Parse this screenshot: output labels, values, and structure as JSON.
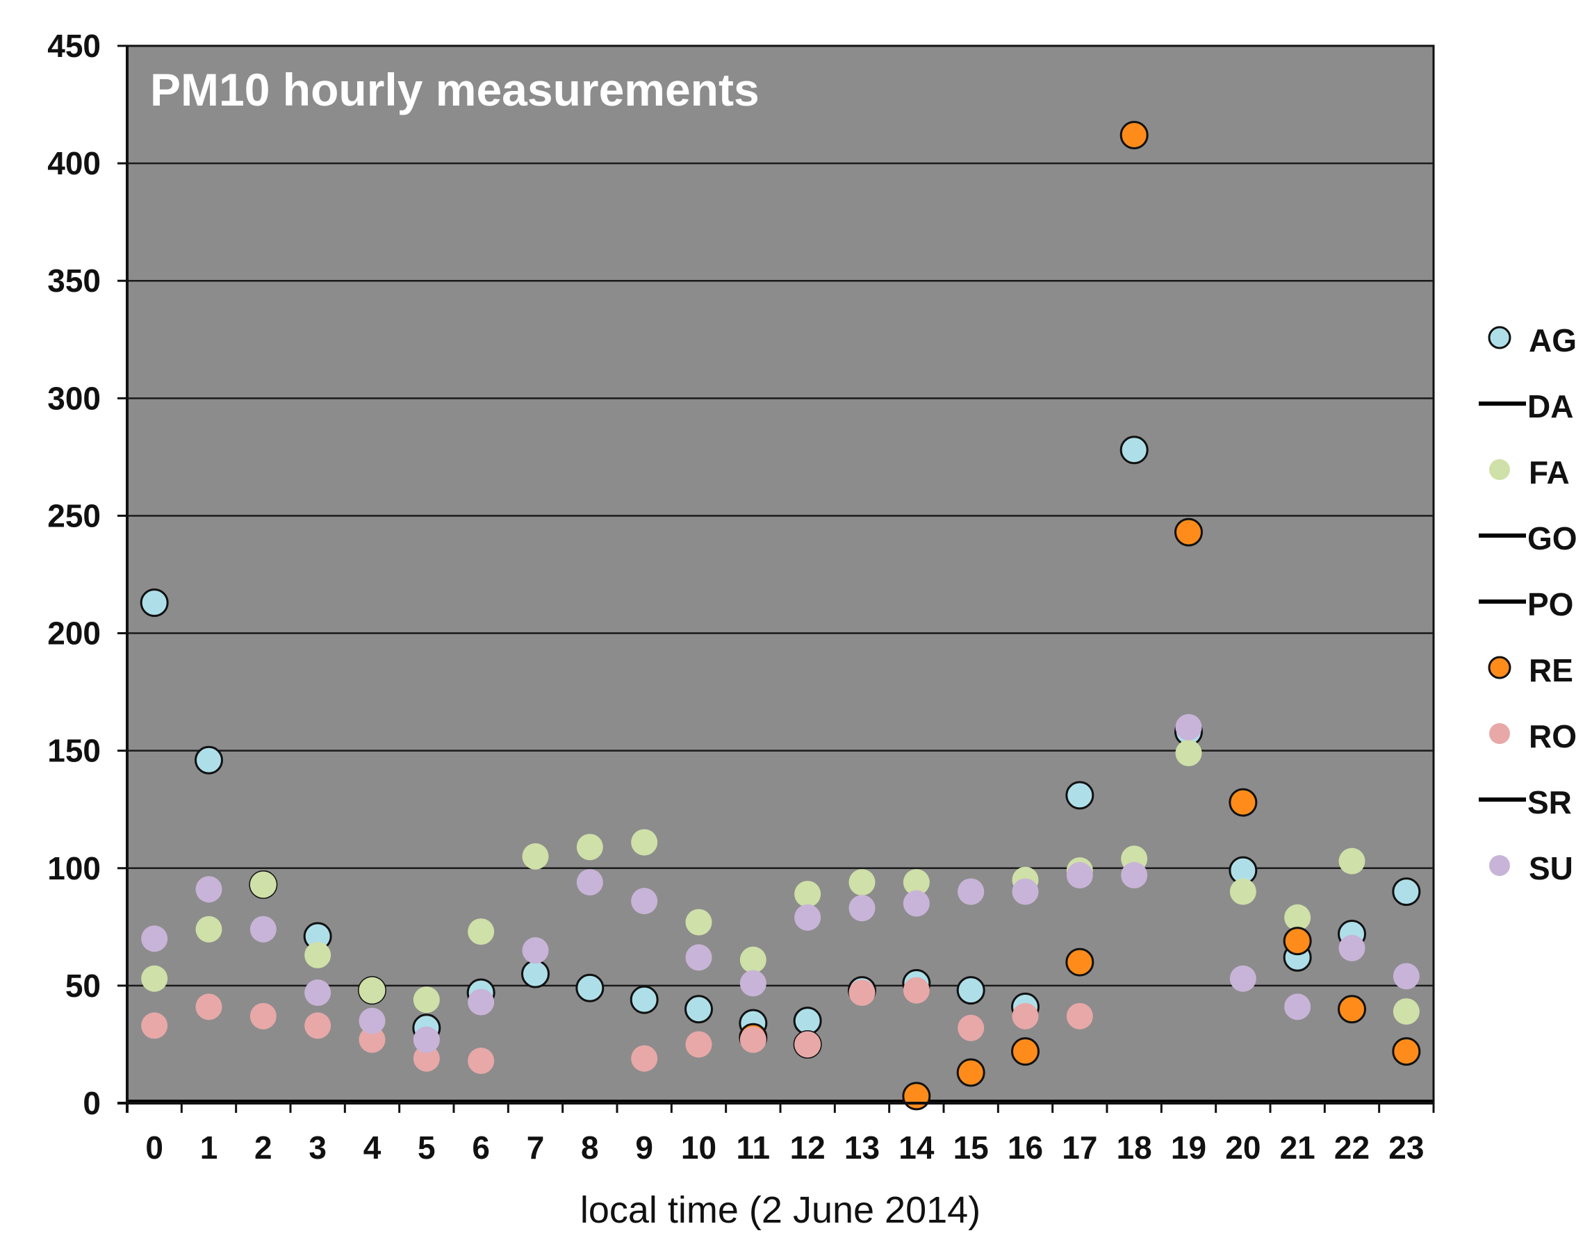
{
  "chart_data": {
    "type": "scatter",
    "title": "PM10 hourly measurements",
    "xlabel": "local time (2 June 2014)",
    "ylabel": "",
    "xlim": [
      -0.5,
      23.5
    ],
    "ylim": [
      0,
      450
    ],
    "yticks": [
      0,
      50,
      100,
      150,
      200,
      250,
      300,
      350,
      400,
      450
    ],
    "categories": [
      "0",
      "1",
      "2",
      "3",
      "4",
      "5",
      "6",
      "7",
      "8",
      "9",
      "10",
      "11",
      "12",
      "13",
      "14",
      "15",
      "16",
      "17",
      "18",
      "19",
      "20",
      "21",
      "22",
      "23"
    ],
    "grid": true,
    "background_color": "#8c8c8c",
    "legend_position": "right",
    "series": [
      {
        "name": "AG",
        "marker": "circle",
        "color": "#aedfe9",
        "outline": true,
        "values": [
          213,
          146,
          93,
          71,
          48,
          32,
          47,
          55,
          49,
          44,
          40,
          34,
          35,
          48,
          51,
          48,
          41,
          131,
          278,
          158,
          99,
          62,
          72,
          90
        ]
      },
      {
        "name": "DA",
        "marker": "line",
        "color": "#000000",
        "outline": false,
        "values": [
          0,
          0,
          0,
          0,
          0,
          0,
          0,
          0,
          0,
          0,
          0,
          0,
          0,
          0,
          0,
          0,
          0,
          0,
          0,
          0,
          0,
          0,
          0,
          0
        ]
      },
      {
        "name": "FA",
        "marker": "circle",
        "color": "#cfe0a8",
        "outline": false,
        "values": [
          53,
          74,
          93,
          63,
          48,
          44,
          73,
          105,
          109,
          111,
          77,
          61,
          89,
          94,
          94,
          90,
          95,
          99,
          104,
          149,
          90,
          79,
          103,
          39
        ]
      },
      {
        "name": "GO",
        "marker": "line",
        "color": "#000000",
        "outline": false,
        "values": [
          0,
          0,
          0,
          0,
          0,
          0,
          0,
          0,
          0,
          0,
          0,
          0,
          0,
          0,
          0,
          0,
          0,
          0,
          0,
          0,
          0,
          0,
          0,
          0
        ]
      },
      {
        "name": "PO",
        "marker": "line",
        "color": "#000000",
        "outline": false,
        "values": [
          0,
          0,
          0,
          0,
          0,
          0,
          0,
          0,
          0,
          0,
          0,
          0,
          0,
          0,
          0,
          0,
          0,
          0,
          0,
          0,
          0,
          0,
          0,
          0
        ]
      },
      {
        "name": "RE",
        "marker": "circle",
        "color": "#ff8c1a",
        "outline": true,
        "values": [
          null,
          null,
          null,
          null,
          null,
          null,
          null,
          null,
          null,
          null,
          null,
          28,
          25,
          null,
          3,
          13,
          22,
          60,
          412,
          243,
          128,
          69,
          40,
          22
        ]
      },
      {
        "name": "RO",
        "marker": "circle",
        "color": "#e8a8a8",
        "outline": false,
        "values": [
          33,
          41,
          37,
          33,
          27,
          19,
          18,
          null,
          null,
          19,
          25,
          27,
          25,
          47,
          48,
          32,
          37,
          37,
          null,
          null,
          null,
          null,
          null,
          null
        ]
      },
      {
        "name": "SR",
        "marker": "line",
        "color": "#000000",
        "outline": false,
        "values": [
          0,
          0,
          0,
          0,
          0,
          0,
          0,
          0,
          0,
          0,
          0,
          0,
          0,
          0,
          0,
          0,
          0,
          0,
          0,
          0,
          0,
          0,
          0,
          0
        ]
      },
      {
        "name": "SU",
        "marker": "circle",
        "color": "#c8b4d8",
        "outline": false,
        "values": [
          70,
          91,
          74,
          47,
          35,
          27,
          43,
          65,
          94,
          86,
          62,
          51,
          79,
          83,
          85,
          90,
          90,
          97,
          97,
          160,
          53,
          41,
          66,
          54
        ]
      }
    ]
  }
}
